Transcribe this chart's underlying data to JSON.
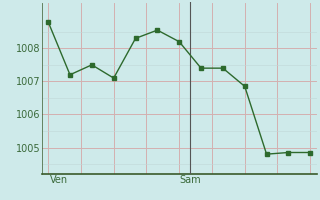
{
  "x_values": [
    0,
    1,
    2,
    3,
    4,
    5,
    6,
    7,
    8,
    9,
    10,
    11,
    12
  ],
  "y_values": [
    1008.8,
    1007.2,
    1007.5,
    1007.1,
    1008.3,
    1008.55,
    1008.2,
    1007.4,
    1007.4,
    1006.85,
    1004.8,
    1004.85,
    1004.85
  ],
  "xtick_positions": [
    0.5,
    6.5
  ],
  "xtick_labels": [
    "Ven",
    "Sam"
  ],
  "vline_x": 6.5,
  "ytick_values": [
    1005,
    1006,
    1007,
    1008
  ],
  "ylim": [
    1004.2,
    1009.4
  ],
  "xlim": [
    -0.3,
    12.3
  ],
  "line_color": "#2d6a2d",
  "marker_color": "#2d6a2d",
  "bg_color": "#ceeaea",
  "grid_color_h": "#c0d8d8",
  "grid_color_v": "#d4b0b0",
  "axis_color": "#3a5a2a",
  "tick_color": "#3a6a3a"
}
